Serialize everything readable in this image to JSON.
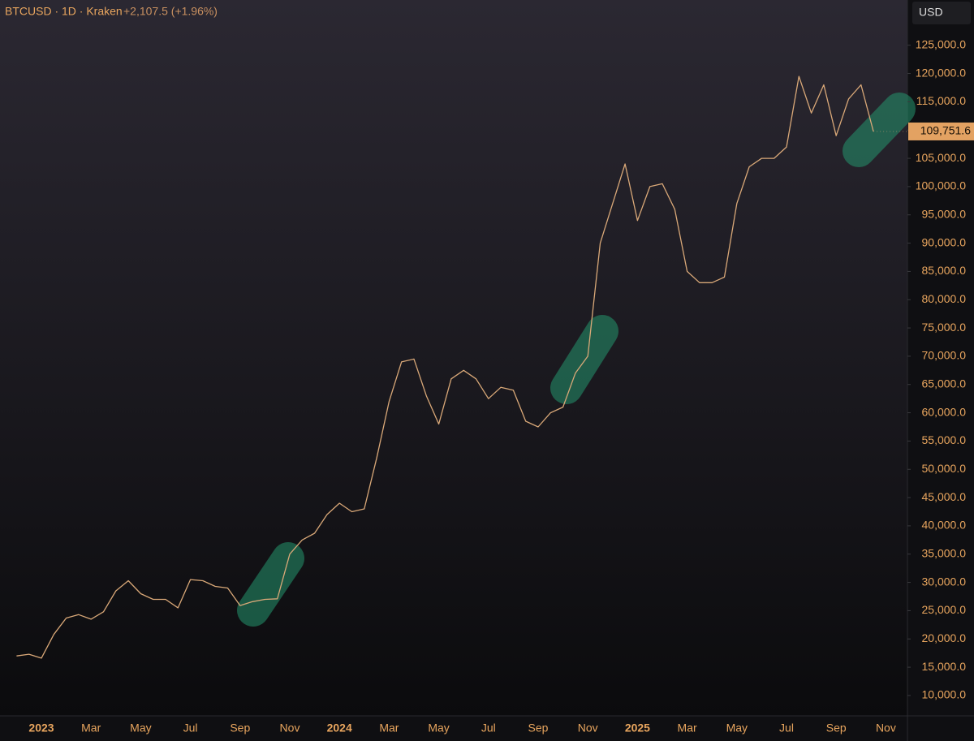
{
  "chart_data": {
    "type": "line",
    "title": "BTCUSD · 1D · Kraken",
    "change": "+2,107.5 (+1.96%)",
    "currency": "USD",
    "grid": false,
    "categories": [
      null,
      null,
      "2023",
      null,
      null,
      null,
      "Mar",
      null,
      null,
      null,
      "May",
      null,
      null,
      null,
      "Jul",
      null,
      null,
      null,
      "Sep",
      null,
      null,
      null,
      "Nov",
      null,
      null,
      null,
      "2024",
      null,
      null,
      null,
      "Mar",
      null,
      null,
      null,
      "May",
      null,
      null,
      null,
      "Jul",
      null,
      null,
      null,
      "Sep",
      null,
      null,
      null,
      "Nov",
      null,
      null,
      null,
      "2025",
      null,
      null,
      null,
      "Mar",
      null,
      null,
      null,
      "May",
      null,
      null,
      null,
      "Jul",
      null,
      null,
      null,
      "Sep",
      null,
      null,
      null,
      "Nov"
    ],
    "series": [
      {
        "name": "BTCUSD",
        "color": "#d9a878",
        "values": [
          17000,
          17300,
          16600,
          20800,
          23700,
          24300,
          23500,
          24800,
          28500,
          30300,
          28000,
          27000,
          27000,
          25500,
          30500,
          30300,
          29300,
          29000,
          25900,
          26600,
          27000,
          27100,
          35000,
          37500,
          38700,
          42000,
          44000,
          42500,
          43000,
          52000,
          62000,
          69000,
          69500,
          63000,
          58000,
          66000,
          67500,
          66000,
          62500,
          64500,
          64000,
          58500,
          57500,
          60000,
          61000,
          67000,
          70000,
          90000,
          97000,
          104000,
          94000,
          100000,
          100500,
          96000,
          85000,
          83000,
          83000,
          84000,
          97000,
          103500,
          105000,
          105000,
          107000,
          119500,
          113000,
          118000,
          109000,
          115500,
          118000,
          109751.6,
          null
        ],
        "value_labels": [
          null,
          null,
          null,
          null,
          null,
          null,
          null,
          null,
          null,
          null,
          null,
          null,
          null,
          null,
          null,
          null,
          null,
          null,
          null,
          null,
          null,
          null,
          null,
          null,
          null,
          null,
          null,
          null,
          null,
          null,
          null,
          null,
          null,
          null,
          null,
          null,
          null,
          null,
          null,
          null,
          null,
          null,
          null,
          null,
          null,
          null,
          null,
          null,
          null,
          null,
          null,
          null,
          null,
          null,
          null,
          null,
          null,
          null,
          null,
          null,
          null,
          null,
          null,
          null,
          null,
          null,
          null,
          null,
          null,
          "109,751.6",
          null
        ]
      }
    ],
    "ylim": [
      6400,
      133000
    ],
    "yticks": [
      {
        "value": 10000,
        "label": "10,000.0"
      },
      {
        "value": 15000,
        "label": "15,000.0"
      },
      {
        "value": 20000,
        "label": "20,000.0"
      },
      {
        "value": 25000,
        "label": "25,000.0"
      },
      {
        "value": 30000,
        "label": "30,000.0"
      },
      {
        "value": 35000,
        "label": "35,000.0"
      },
      {
        "value": 40000,
        "label": "40,000.0"
      },
      {
        "value": 45000,
        "label": "45,000.0"
      },
      {
        "value": 50000,
        "label": "50,000.0"
      },
      {
        "value": 55000,
        "label": "55,000.0"
      },
      {
        "value": 60000,
        "label": "60,000.0"
      },
      {
        "value": 65000,
        "label": "65,000.0"
      },
      {
        "value": 70000,
        "label": "70,000.0"
      },
      {
        "value": 75000,
        "label": "75,000.0"
      },
      {
        "value": 80000,
        "label": "80,000.0"
      },
      {
        "value": 85000,
        "label": "85,000.0"
      },
      {
        "value": 90000,
        "label": "90,000.0"
      },
      {
        "value": 95000,
        "label": "95,000.0"
      },
      {
        "value": 100000,
        "label": "100,000.0"
      },
      {
        "value": 105000,
        "label": "105,000.0"
      },
      {
        "value": 110000,
        "label": "110,000.0"
      },
      {
        "value": 115000,
        "label": "115,000.0"
      },
      {
        "value": 120000,
        "label": "120,000.0"
      },
      {
        "value": 125000,
        "label": "125,000.0"
      }
    ]
  }
}
